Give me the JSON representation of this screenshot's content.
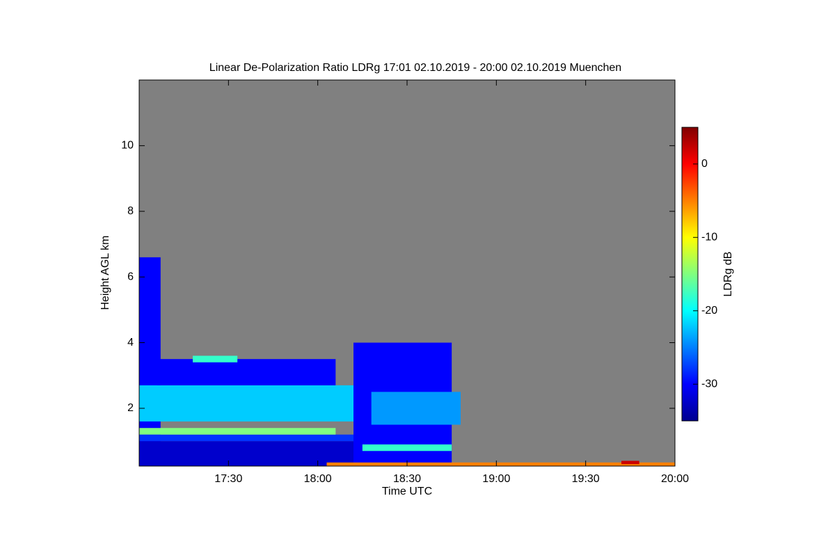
{
  "chart_data": {
    "type": "heatmap",
    "title": "Linear De-Polarization Ratio LDRg   17:01 02.10.2019 - 20:00 02.10.2019 Muenchen",
    "x_label": "Time UTC",
    "y_label": "Height AGL km",
    "colorbar_label": "LDRg dB",
    "xlim": [
      17.0,
      20.0
    ],
    "xticks": [
      {
        "value": 17.5,
        "label": "17:30"
      },
      {
        "value": 18.0,
        "label": "18:00"
      },
      {
        "value": 18.5,
        "label": "18:30"
      },
      {
        "value": 19.0,
        "label": "19:00"
      },
      {
        "value": 19.5,
        "label": "19:30"
      },
      {
        "value": 20.0,
        "label": "20:00"
      }
    ],
    "ylim": [
      0.24,
      12
    ],
    "yticks": [
      2,
      4,
      6,
      8,
      10
    ],
    "clim": [
      -35,
      5
    ],
    "cticks": [
      0,
      -10,
      -20,
      -30
    ],
    "missing_color": "#808080",
    "cells": [
      {
        "time": [
          17.0,
          17.12
        ],
        "height": [
          0.24,
          6.6
        ],
        "value": -30
      },
      {
        "time": [
          17.0,
          18.35
        ],
        "height": [
          0.24,
          1.0
        ],
        "value": -32
      },
      {
        "time": [
          17.0,
          18.2
        ],
        "height": [
          1.0,
          1.2
        ],
        "value": -28
      },
      {
        "time": [
          17.0,
          18.1
        ],
        "height": [
          1.2,
          1.4
        ],
        "value": -15
      },
      {
        "time": [
          17.0,
          18.2
        ],
        "height": [
          1.6,
          2.7
        ],
        "value": -22
      },
      {
        "time": [
          17.1,
          18.1
        ],
        "height": [
          2.7,
          3.5
        ],
        "value": -30
      },
      {
        "time": [
          18.2,
          18.75
        ],
        "height": [
          0.24,
          4.0
        ],
        "value": -30
      },
      {
        "time": [
          18.3,
          18.8
        ],
        "height": [
          1.5,
          2.5
        ],
        "value": -24
      },
      {
        "time": [
          18.25,
          18.75
        ],
        "height": [
          0.7,
          0.9
        ],
        "value": -18
      },
      {
        "time": [
          18.05,
          20.0
        ],
        "height": [
          0.24,
          0.35
        ],
        "value": -5
      },
      {
        "time": [
          19.7,
          19.8
        ],
        "height": [
          0.3,
          0.4
        ],
        "value": 2
      },
      {
        "time": [
          17.3,
          17.55
        ],
        "height": [
          3.4,
          3.6
        ],
        "value": -18
      }
    ]
  }
}
